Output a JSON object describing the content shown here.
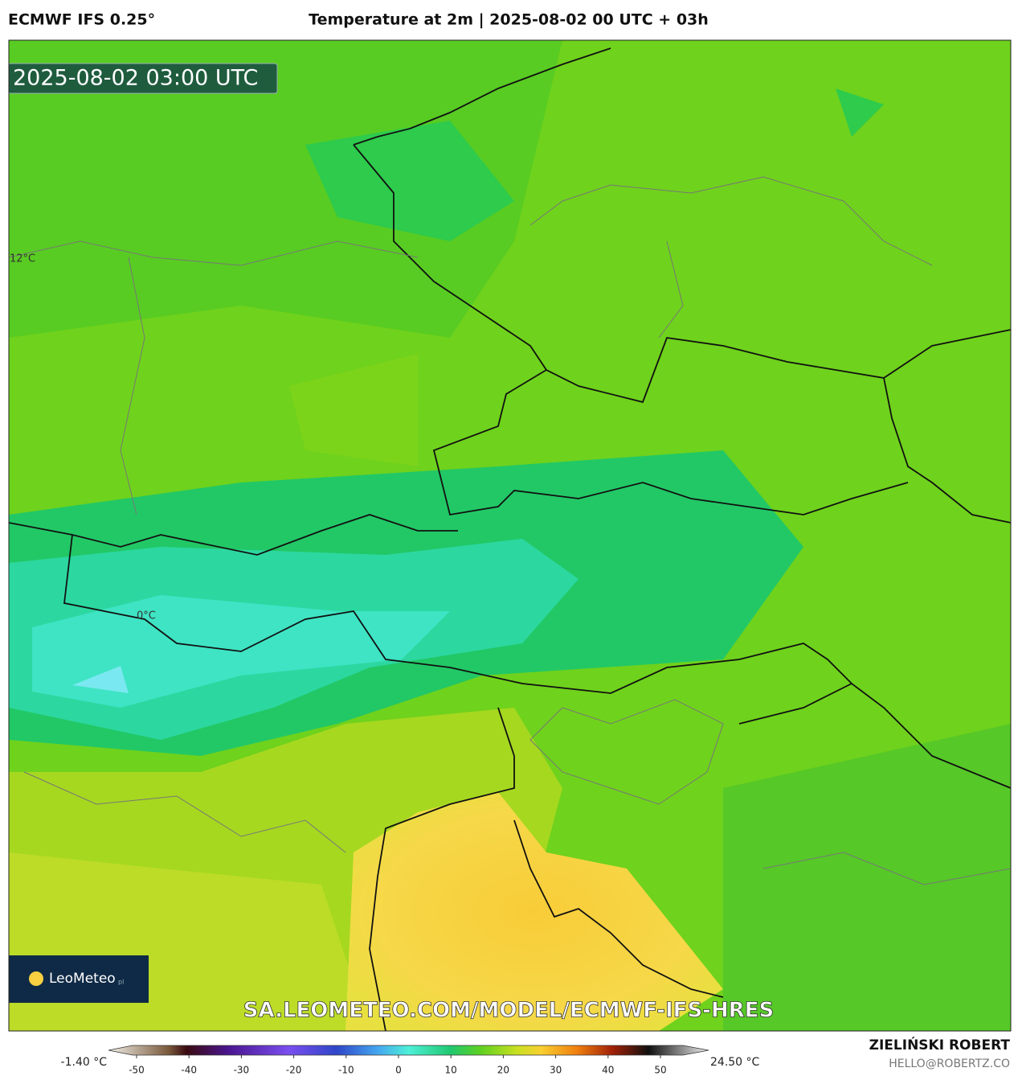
{
  "header": {
    "model": "ECMWF IFS 0.25°",
    "title": "Temperature at 2m | 2025-08-02 00 UTC + 03h"
  },
  "map": {
    "timestamp": "2025-08-02 03:00 UTC",
    "contour_labels": [
      "12°C",
      "0°C"
    ],
    "watermark": "SA.LEOMETEO.COM/MODEL/ECMWF-IFS-HRES",
    "logo": "LeoMeteo",
    "logo_suffix": "pl"
  },
  "colorbar": {
    "min_label": "-1.40 °C",
    "max_label": "24.50 °C",
    "ticks": [
      -50,
      -40,
      -30,
      -20,
      -10,
      0,
      10,
      20,
      30,
      40,
      50
    ]
  },
  "footer": {
    "author": "ZIELIŃSKI ROBERT",
    "email": "HELLO@ROBERTZ.CO"
  }
}
